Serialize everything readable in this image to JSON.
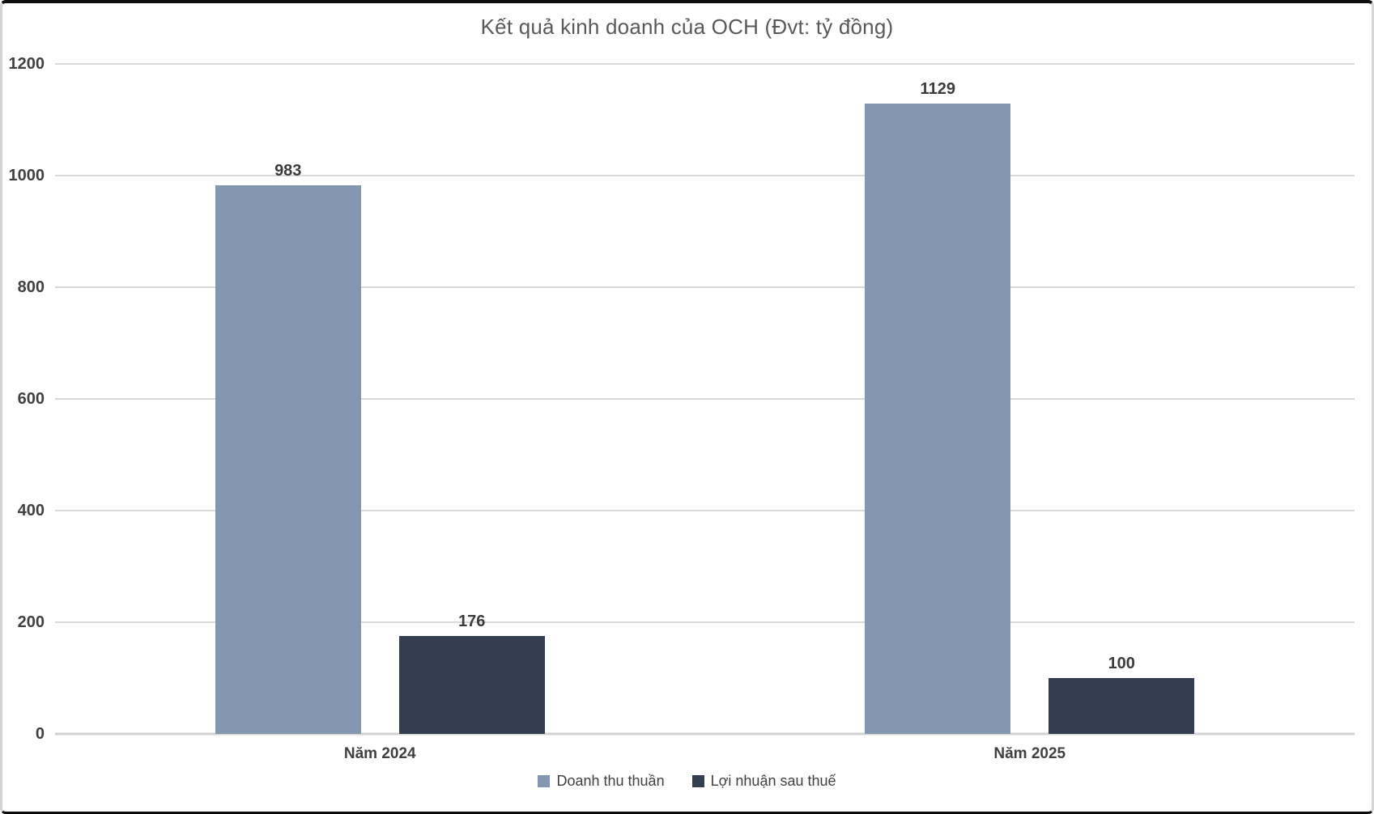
{
  "chart_data": {
    "type": "bar",
    "title": "Kết quả kinh doanh của OCH (Đvt: tỷ đồng)",
    "categories": [
      "Năm 2024",
      "Năm 2025"
    ],
    "series": [
      {
        "name": "Doanh thu thuần",
        "color": "#8497b0",
        "values": [
          983,
          1129
        ]
      },
      {
        "name": "Lợi nhuận sau thuế",
        "color": "#333f50",
        "values": [
          176,
          100
        ]
      }
    ],
    "ylim": [
      0,
      1200
    ],
    "yticks": [
      0,
      200,
      400,
      600,
      800,
      1000,
      1200
    ],
    "grid": true,
    "legend_position": "bottom",
    "data_labels": true,
    "colors": {
      "gridline": "#d9d9d9",
      "axis_line": "#d2d2d2",
      "tick_text": "#404040",
      "category_text": "#404040",
      "data_label_text": "#3b3b3b",
      "title_text": "#595959",
      "legend_text": "#3f3f3f"
    }
  }
}
